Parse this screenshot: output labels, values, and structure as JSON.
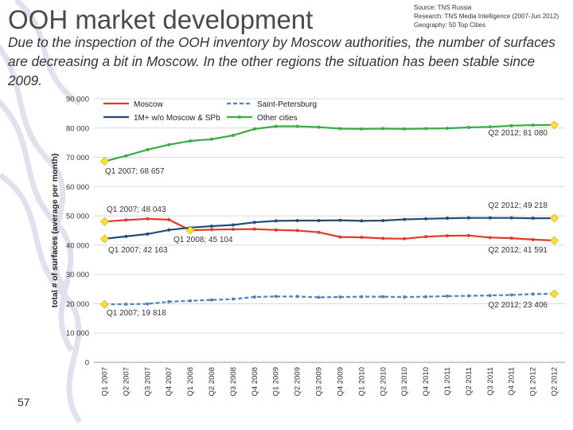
{
  "header": {
    "title": "OOH market development",
    "source_lines": [
      "Source: TNS Russia",
      "Research: TNS Media Intelligence (2007-Jun 2012)",
      "Geography: 50 Top Cities"
    ],
    "subtitle": "Due to the inspection of  the OOH inventory by Moscow authorities, the number of surfaces are decreasing a bit in Moscow. In the other regions the situation has been stable since 2009.",
    "page_number": "57"
  },
  "colors": {
    "moscow": "#e03a2f",
    "spb": "#4f81bd",
    "mid": "#1f4e79",
    "other": "#3aab47",
    "marker": "#ffe033"
  },
  "chart_data": {
    "type": "line",
    "ylabel": "total # of surfaces (average per month)",
    "ylim": [
      0,
      90000
    ],
    "yticks": [
      "0",
      "10 000",
      "20 000",
      "30 000",
      "40 000",
      "50 000",
      "60 000",
      "70 000",
      "80 000",
      "90 000"
    ],
    "grid": true,
    "legend_position": "top",
    "categories": [
      "Q1 2007",
      "Q2 2007",
      "Q3 2007",
      "Q4 2007",
      "Q1 2008",
      "Q2 2008",
      "Q3 2008",
      "Q4 2008",
      "Q1 2009",
      "Q2 2009",
      "Q3 2009",
      "Q4 2009",
      "Q1 2010",
      "Q2 2010",
      "Q3 2010",
      "Q4 2010",
      "Q1 2011",
      "Q2 2011",
      "Q3 2011",
      "Q4 2011",
      "Q1 2012",
      "Q2 2012"
    ],
    "series": [
      {
        "name": "Moscow",
        "style": "solid",
        "color_key": "moscow",
        "values": [
          48043,
          48600,
          49000,
          48700,
          45104,
          45300,
          45400,
          45500,
          45200,
          45000,
          44400,
          42800,
          42700,
          42300,
          42200,
          42900,
          43200,
          43300,
          42600,
          42400,
          41900,
          41591
        ]
      },
      {
        "name": "Saint-Petersburg",
        "style": "dashed",
        "color_key": "spb",
        "values": [
          19818,
          19850,
          19950,
          20700,
          21000,
          21300,
          21600,
          22300,
          22500,
          22500,
          22200,
          22300,
          22400,
          22400,
          22300,
          22400,
          22600,
          22700,
          22800,
          23000,
          23300,
          23406
        ]
      },
      {
        "name": "1M+ w/o Moscow & SPb",
        "style": "solid",
        "color_key": "mid",
        "values": [
          42163,
          43000,
          43800,
          45200,
          46000,
          46500,
          46900,
          47800,
          48300,
          48400,
          48400,
          48500,
          48300,
          48400,
          48800,
          49000,
          49200,
          49300,
          49300,
          49300,
          49200,
          49218
        ]
      },
      {
        "name": "Other cities",
        "style": "solid",
        "color_key": "other",
        "values": [
          68657,
          70500,
          72600,
          74300,
          75600,
          76200,
          77500,
          79700,
          80600,
          80600,
          80300,
          79800,
          79700,
          79800,
          79700,
          79800,
          79900,
          80200,
          80400,
          80800,
          81000,
          81080
        ]
      }
    ],
    "annotations": [
      {
        "text": "Q2 2012; 81 080",
        "series": 3,
        "index": 21
      },
      {
        "text": "Q1 2007; 68 657",
        "series": 3,
        "index": 0
      },
      {
        "text": "Q1 2007; 48 043",
        "series": 0,
        "index": 0
      },
      {
        "text": "Q2 2012; 49 218",
        "series": 2,
        "index": 21
      },
      {
        "text": "Q1 2008; 45 104",
        "series": 0,
        "index": 4
      },
      {
        "text": "Q1 2007; 42 163",
        "series": 2,
        "index": 0
      },
      {
        "text": "Q2 2012; 41 591",
        "series": 0,
        "index": 21
      },
      {
        "text": "Q1 2007; 19 818",
        "series": 1,
        "index": 0
      },
      {
        "text": "Q2 2012; 23 406",
        "series": 1,
        "index": 21
      }
    ]
  }
}
